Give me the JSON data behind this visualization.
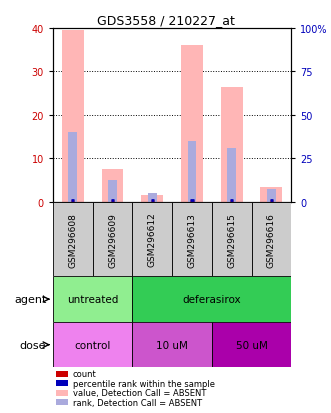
{
  "title": "GDS3558 / 210227_at",
  "samples": [
    "GSM296608",
    "GSM296609",
    "GSM296612",
    "GSM296613",
    "GSM296615",
    "GSM296616"
  ],
  "pink_bar_heights": [
    39.5,
    7.5,
    1.5,
    36.0,
    26.5,
    3.5
  ],
  "blue_bar_heights": [
    16.0,
    5.0,
    2.0,
    14.0,
    12.5,
    3.0
  ],
  "pink_bar_color": "#FFB6B6",
  "blue_bar_color": "#AAAADD",
  "red_marker_color": "#CC0000",
  "blue_marker_color": "#0000BB",
  "ylim_left": [
    0,
    40
  ],
  "ylim_right": [
    0,
    100
  ],
  "yticks_left": [
    0,
    10,
    20,
    30,
    40
  ],
  "yticks_right": [
    0,
    25,
    50,
    75,
    100
  ],
  "ytick_labels_right": [
    "0",
    "25",
    "50",
    "75",
    "100%"
  ],
  "agent_groups": [
    {
      "label": "untreated",
      "start": 0,
      "end": 2,
      "color": "#90EE90"
    },
    {
      "label": "deferasirox",
      "start": 2,
      "end": 6,
      "color": "#33CC55"
    }
  ],
  "dose_colors": [
    "#EE82EE",
    "#CC55CC",
    "#AA00AA"
  ],
  "dose_groups": [
    {
      "label": "control",
      "start": 0,
      "end": 2
    },
    {
      "label": "10 uM",
      "start": 2,
      "end": 4
    },
    {
      "label": "50 uM",
      "start": 4,
      "end": 6
    }
  ],
  "legend_items": [
    {
      "label": "count",
      "color": "#CC0000"
    },
    {
      "label": "percentile rank within the sample",
      "color": "#0000BB"
    },
    {
      "label": "value, Detection Call = ABSENT",
      "color": "#FFB6B6"
    },
    {
      "label": "rank, Detection Call = ABSENT",
      "color": "#AAAADD"
    }
  ],
  "agent_label": "agent",
  "dose_label": "dose",
  "axis_color_left": "#CC0000",
  "axis_color_right": "#0000BB",
  "background_color": "#FFFFFF"
}
